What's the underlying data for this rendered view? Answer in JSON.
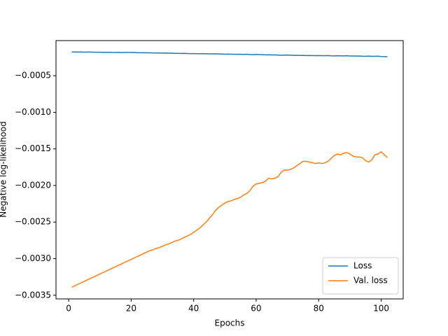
{
  "chart_data": {
    "type": "line",
    "xlabel": "Epochs",
    "ylabel": "Negative log-likelihood",
    "x": [
      1,
      2,
      3,
      4,
      5,
      6,
      7,
      8,
      9,
      10,
      11,
      12,
      13,
      14,
      15,
      16,
      17,
      18,
      19,
      20,
      21,
      22,
      23,
      24,
      25,
      26,
      27,
      28,
      29,
      30,
      31,
      32,
      33,
      34,
      35,
      36,
      37,
      38,
      39,
      40,
      41,
      42,
      43,
      44,
      45,
      46,
      47,
      48,
      49,
      50,
      51,
      52,
      53,
      54,
      55,
      56,
      57,
      58,
      59,
      60,
      61,
      62,
      63,
      64,
      65,
      66,
      67,
      68,
      69,
      70,
      71,
      72,
      73,
      74,
      75,
      76,
      77,
      78,
      79,
      80,
      81,
      82,
      83,
      84,
      85,
      86,
      87,
      88,
      89,
      90,
      91,
      92,
      93,
      94,
      95,
      96,
      97,
      98,
      99,
      100,
      101,
      102
    ],
    "series": [
      {
        "name": "Loss",
        "color": "#1f77b4",
        "values": [
          -0.000175,
          -0.000176,
          -0.000177,
          -0.000176,
          -0.000178,
          -0.000177,
          -0.000177,
          -0.000178,
          -0.000179,
          -0.000179,
          -0.00018,
          -0.000181,
          -0.000179,
          -0.000182,
          -0.000183,
          -0.00018,
          -0.000184,
          -0.000181,
          -0.000182,
          -0.000183,
          -0.000181,
          -0.000186,
          -0.000186,
          -0.000185,
          -0.000188,
          -0.000187,
          -0.000189,
          -0.00019,
          -0.000189,
          -0.000191,
          -0.00019,
          -0.000193,
          -0.000191,
          -0.000195,
          -0.000194,
          -0.000196,
          -0.000195,
          -0.000197,
          -0.000198,
          -0.000198,
          -0.000199,
          -0.000199,
          -0.000198,
          -0.000201,
          -0.0002,
          -0.000202,
          -0.000201,
          -0.000203,
          -0.000203,
          -0.000206,
          -0.000204,
          -0.000207,
          -0.000206,
          -0.000208,
          -0.000206,
          -0.000209,
          -0.000207,
          -0.00021,
          -0.000212,
          -0.000209,
          -0.000211,
          -0.000213,
          -0.000215,
          -0.000214,
          -0.000216,
          -0.000215,
          -0.000218,
          -0.000221,
          -0.000219,
          -0.000218,
          -0.00022,
          -0.000222,
          -0.000221,
          -0.000223,
          -0.000222,
          -0.000224,
          -0.000223,
          -0.000224,
          -0.000226,
          -0.000225,
          -0.000226,
          -0.000227,
          -0.000224,
          -0.000228,
          -0.000229,
          -0.000227,
          -0.000228,
          -0.000229,
          -0.000227,
          -0.00023,
          -0.000231,
          -0.000232,
          -0.00023,
          -0.000233,
          -0.000234,
          -0.000232,
          -0.000235,
          -0.000234,
          -0.000233,
          -0.000238,
          -0.000239,
          -0.00024
        ]
      },
      {
        "name": "Val. loss",
        "color": "#ff7f0e",
        "values": [
          -0.00339,
          -0.00337,
          -0.00335,
          -0.00333,
          -0.00331,
          -0.00329,
          -0.00327,
          -0.00325,
          -0.00323,
          -0.00321,
          -0.00319,
          -0.00317,
          -0.00315,
          -0.00313,
          -0.00311,
          -0.00309,
          -0.00307,
          -0.00305,
          -0.00303,
          -0.00301,
          -0.00299,
          -0.00297,
          -0.00295,
          -0.00293,
          -0.00291,
          -0.00289,
          -0.00288,
          -0.00286,
          -0.00285,
          -0.00283,
          -0.00281,
          -0.0028,
          -0.00278,
          -0.00276,
          -0.00275,
          -0.00273,
          -0.00271,
          -0.00269,
          -0.00267,
          -0.00264,
          -0.00261,
          -0.00258,
          -0.00254,
          -0.0025,
          -0.00245,
          -0.0024,
          -0.00234,
          -0.0023,
          -0.00227,
          -0.00224,
          -0.00222,
          -0.00221,
          -0.00219,
          -0.00218,
          -0.00216,
          -0.00213,
          -0.00211,
          -0.00207,
          -0.00201,
          -0.00198,
          -0.00197,
          -0.00196,
          -0.00194,
          -0.0019,
          -0.00191,
          -0.0019,
          -0.00188,
          -0.00182,
          -0.00179,
          -0.00179,
          -0.00178,
          -0.00176,
          -0.00173,
          -0.0017,
          -0.00167,
          -0.00167,
          -0.00168,
          -0.00169,
          -0.0017,
          -0.00169,
          -0.0017,
          -0.00169,
          -0.00167,
          -0.00163,
          -0.00159,
          -0.00157,
          -0.00158,
          -0.00156,
          -0.00155,
          -0.00157,
          -0.0016,
          -0.00161,
          -0.00161,
          -0.00162,
          -0.00166,
          -0.00168,
          -0.00165,
          -0.00158,
          -0.00157,
          -0.00154,
          -0.00158,
          -0.00162
        ]
      }
    ],
    "xlim": [
      -4.05,
      107.05
    ],
    "xticks": [
      0,
      20,
      40,
      60,
      80,
      100
    ],
    "ylim": [
      -0.00355,
      -2e-05
    ],
    "yticks": [
      {
        "value": -0.0035,
        "label": "−0.0035"
      },
      {
        "value": -0.003,
        "label": "−0.0030"
      },
      {
        "value": -0.0025,
        "label": "−0.0025"
      },
      {
        "value": -0.002,
        "label": "−0.0020"
      },
      {
        "value": -0.0015,
        "label": "−0.0015"
      },
      {
        "value": -0.001,
        "label": "−0.0010"
      },
      {
        "value": -0.0005,
        "label": "−0.0005"
      }
    ],
    "grid": false,
    "legend": "lower right"
  }
}
